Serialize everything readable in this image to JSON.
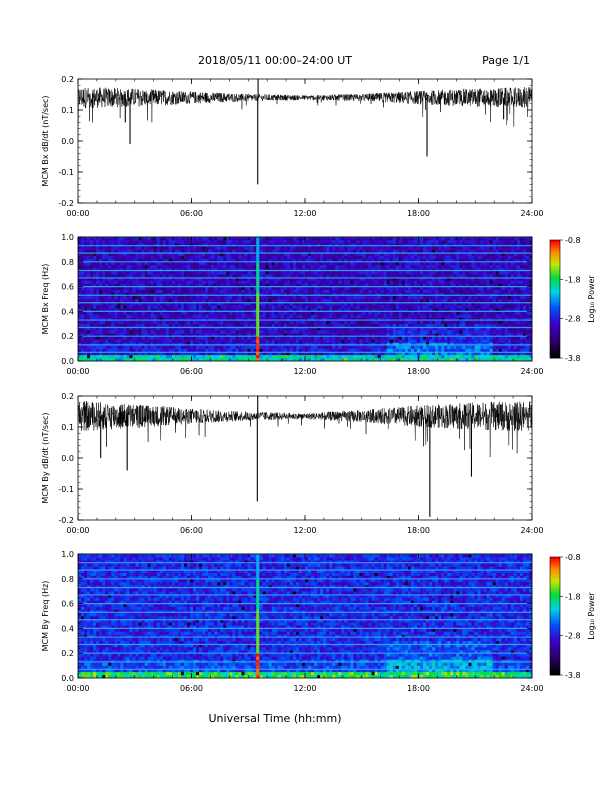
{
  "header": {
    "date_range": "2018/05/11   00:00–24:00 UT",
    "page": "Page 1/1"
  },
  "footer": {
    "xlabel": "Universal Time (hh:mm)"
  },
  "colors": {
    "trace": "#000000",
    "background": "#ffffff"
  },
  "chart_data": [
    {
      "type": "line",
      "ylabel": "MCM Bx dB/dt (nT/sec)",
      "xlim": [
        0,
        24
      ],
      "ylim": [
        -0.2,
        0.2
      ],
      "x_ticks": [
        "00:00",
        "06:00",
        "12:00",
        "18:00",
        "24:00"
      ],
      "y_ticks": [
        "-0.2",
        "-0.1",
        "0.0",
        "0.1",
        "0.2"
      ],
      "baseline": 0.14,
      "noise_envelope": [
        {
          "x": 0,
          "amp": 0.035
        },
        {
          "x": 3,
          "amp": 0.03
        },
        {
          "x": 6,
          "amp": 0.02
        },
        {
          "x": 9,
          "amp": 0.012
        },
        {
          "x": 12,
          "amp": 0.008
        },
        {
          "x": 15,
          "amp": 0.012
        },
        {
          "x": 18,
          "amp": 0.022
        },
        {
          "x": 21,
          "amp": 0.03
        },
        {
          "x": 24,
          "amp": 0.035
        }
      ],
      "spikes": [
        {
          "x": 2.75,
          "y": -0.01
        },
        {
          "x": 2.5,
          "y": 0.06
        },
        {
          "x": 9.5,
          "y": -0.14
        },
        {
          "x": 9.52,
          "y": 0.2
        },
        {
          "x": 18.45,
          "y": -0.05
        },
        {
          "x": 22.5,
          "y": 0.07
        }
      ]
    },
    {
      "type": "heatmap",
      "ylabel": "MCM Bx Freq (Hz)",
      "xlim": [
        0,
        24
      ],
      "ylim": [
        0,
        1.0
      ],
      "x_ticks": [
        "00:00",
        "06:00",
        "12:00",
        "18:00",
        "24:00"
      ],
      "y_ticks": [
        "0.0",
        "0.2",
        "0.4",
        "0.6",
        "0.8",
        "1.0"
      ],
      "colorbar": {
        "label": "Log₁₀ Power",
        "ticks": [
          "-0.8",
          "-1.8",
          "-2.8",
          "-3.8"
        ],
        "range": [
          -3.8,
          -0.8
        ]
      },
      "harmonic_lines_hz": [
        0.07,
        0.13,
        0.2,
        0.27,
        0.33,
        0.4,
        0.47,
        0.53,
        0.6,
        0.67,
        0.73,
        0.8,
        0.87,
        0.93,
        1.0
      ],
      "event_time": 9.5
    },
    {
      "type": "line",
      "ylabel": "MCM By dB/dt (nT/sec)",
      "xlim": [
        0,
        24
      ],
      "ylim": [
        -0.2,
        0.2
      ],
      "x_ticks": [
        "00:00",
        "06:00",
        "12:00",
        "18:00",
        "24:00"
      ],
      "y_ticks": [
        "-0.2",
        "-0.1",
        "0.0",
        "0.1",
        "0.2"
      ],
      "baseline": 0.135,
      "noise_envelope": [
        {
          "x": 0,
          "amp": 0.05
        },
        {
          "x": 3,
          "amp": 0.04
        },
        {
          "x": 6,
          "amp": 0.025
        },
        {
          "x": 9,
          "amp": 0.015
        },
        {
          "x": 12,
          "amp": 0.01
        },
        {
          "x": 15,
          "amp": 0.02
        },
        {
          "x": 18,
          "amp": 0.035
        },
        {
          "x": 21,
          "amp": 0.045
        },
        {
          "x": 24,
          "amp": 0.05
        }
      ],
      "spikes": [
        {
          "x": 1.2,
          "y": 0.0
        },
        {
          "x": 2.6,
          "y": -0.04
        },
        {
          "x": 9.48,
          "y": -0.14
        },
        {
          "x": 9.5,
          "y": 0.2
        },
        {
          "x": 18.6,
          "y": -0.19
        },
        {
          "x": 20.8,
          "y": -0.06
        }
      ]
    },
    {
      "type": "heatmap",
      "ylabel": "MCM By Freq (Hz)",
      "xlim": [
        0,
        24
      ],
      "ylim": [
        0,
        1.0
      ],
      "x_ticks": [
        "00:00",
        "06:00",
        "12:00",
        "18:00",
        "24:00"
      ],
      "y_ticks": [
        "0.0",
        "0.2",
        "0.4",
        "0.6",
        "0.8",
        "1.0"
      ],
      "colorbar": {
        "label": "Log₁₀ Power",
        "ticks": [
          "-0.8",
          "-1.8",
          "-2.8",
          "-3.8"
        ],
        "range": [
          -3.8,
          -0.8
        ]
      },
      "harmonic_lines_hz": [
        0.07,
        0.13,
        0.2,
        0.27,
        0.33,
        0.4,
        0.47,
        0.53,
        0.6,
        0.67,
        0.73,
        0.8,
        0.87,
        0.93,
        1.0
      ],
      "event_time": 9.5
    }
  ]
}
